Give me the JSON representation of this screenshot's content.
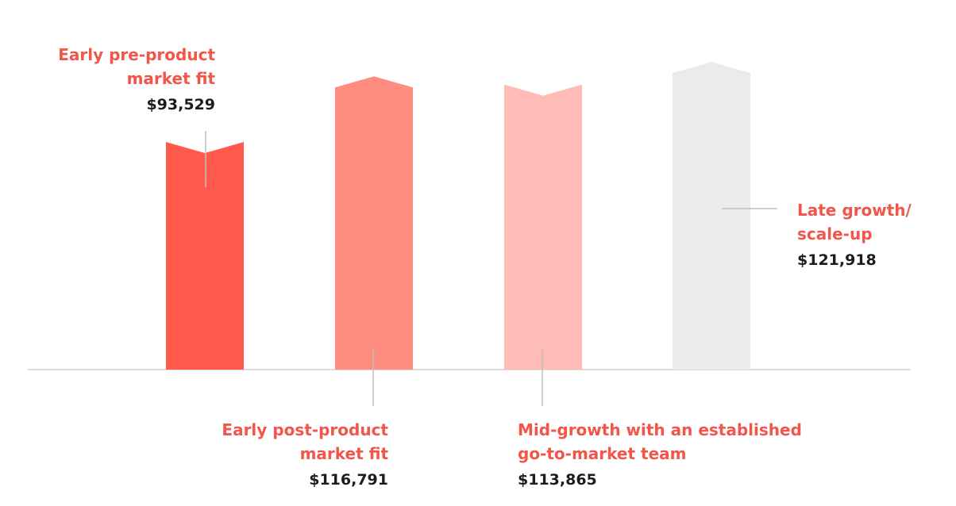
{
  "chart_data": {
    "type": "bar",
    "title": "",
    "xlabel": "",
    "ylabel": "",
    "ylim": [
      0,
      125000
    ],
    "grid": false,
    "legend": "none",
    "categories": [
      "Early pre-product market fit",
      "Early post-product market fit",
      "Mid-growth with an established go-to-market team",
      "Late growth/ scale-up"
    ],
    "values": [
      93529,
      116791,
      113865,
      121918
    ],
    "bars": [
      {
        "label_lines": [
          "Early pre-product",
          "market fit"
        ],
        "value": 93529,
        "value_text": "$93,529",
        "color": "#FF5A4C",
        "label_position": "top-left",
        "top_notch": "v-down"
      },
      {
        "label_lines": [
          "Early post-product",
          "market fit"
        ],
        "value": 116791,
        "value_text": "$116,791",
        "color": "#FF8C81",
        "label_position": "bottom-left",
        "top_notch": "peak-up"
      },
      {
        "label_lines": [
          "Mid-growth with an established",
          "go-to-market team"
        ],
        "value": 113865,
        "value_text": "$113,865",
        "color": "#FFBCB6",
        "label_position": "bottom-right",
        "top_notch": "v-down"
      },
      {
        "label_lines": [
          "Late growth/",
          "scale-up"
        ],
        "value": 121918,
        "value_text": "$121,918",
        "color": "#EBEBEB",
        "label_position": "right",
        "top_notch": "peak-up"
      }
    ],
    "colors": {
      "label": "#F2564A",
      "value": "#1d1d1d",
      "baseline": "#DCDCDC",
      "leader": "#BFBFBF"
    }
  }
}
